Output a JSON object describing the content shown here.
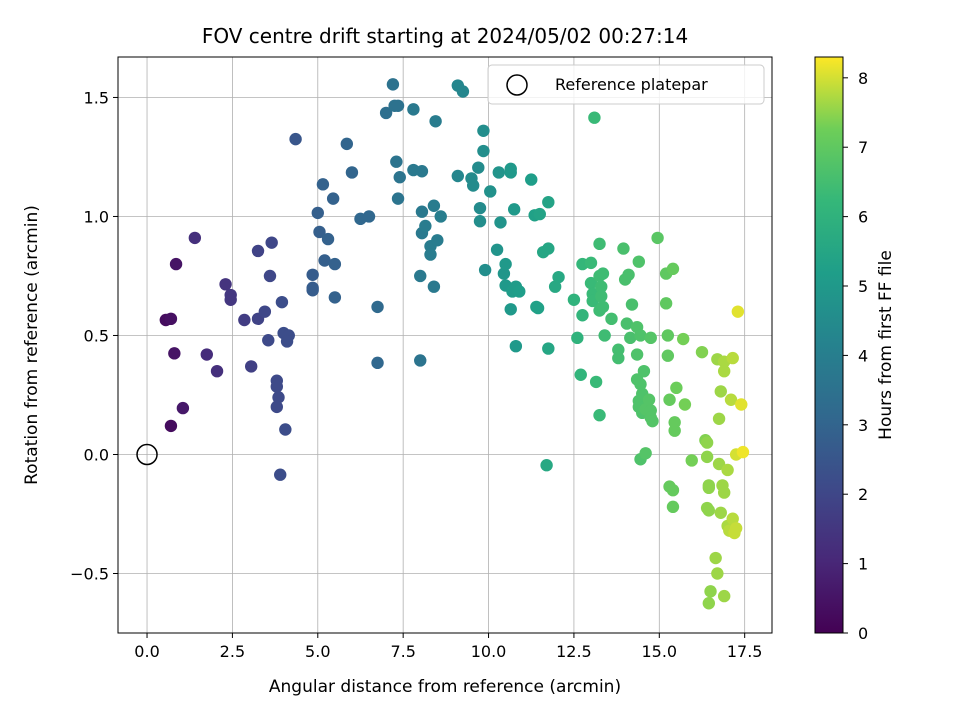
{
  "chart_data": {
    "type": "scatter",
    "title": "FOV centre drift starting at 2024/05/02 00:27:14",
    "xlabel": "Angular distance from reference (arcmin)",
    "ylabel": "Rotation from reference (arcmin)",
    "xlim": [
      -0.85,
      18.3
    ],
    "ylim": [
      -0.75,
      1.67
    ],
    "xticks": [
      0.0,
      2.5,
      5.0,
      7.5,
      10.0,
      12.5,
      15.0,
      17.5
    ],
    "xtick_labels": [
      "0.0",
      "2.5",
      "5.0",
      "7.5",
      "10.0",
      "12.5",
      "15.0",
      "17.5"
    ],
    "yticks": [
      -0.5,
      0.0,
      0.5,
      1.0,
      1.5
    ],
    "ytick_labels": [
      "−0.5",
      "0.0",
      "0.5",
      "1.0",
      "1.5"
    ],
    "grid": true,
    "legend": {
      "placement": "top-right",
      "entries": [
        "Reference platepar"
      ]
    },
    "reference_point": {
      "x": 0.0,
      "y": 0.0,
      "label": "Reference platepar",
      "marker": "open-circle"
    },
    "colorbar": {
      "label": "Hours from first FF file",
      "range": [
        0,
        8.3
      ],
      "ticks": [
        0,
        1,
        2,
        3,
        4,
        5,
        6,
        7,
        8
      ],
      "tick_labels": [
        "0",
        "1",
        "2",
        "3",
        "4",
        "5",
        "6",
        "7",
        "8"
      ],
      "colormap": "viridis"
    },
    "series": [
      {
        "points": [
          [
            0.55,
            0.565,
            0.3
          ],
          [
            0.7,
            0.57,
            0.4
          ],
          [
            0.85,
            0.8,
            0.5
          ],
          [
            0.8,
            0.425,
            0.5
          ],
          [
            0.7,
            0.12,
            0.3
          ],
          [
            1.05,
            0.195,
            0.6
          ],
          [
            1.4,
            0.91,
            1.3
          ],
          [
            1.75,
            0.42,
            1.2
          ],
          [
            2.05,
            0.35,
            1.3
          ],
          [
            2.3,
            0.715,
            1.4
          ],
          [
            2.45,
            0.67,
            1.5
          ],
          [
            2.45,
            0.65,
            1.5
          ],
          [
            2.85,
            0.565,
            1.7
          ],
          [
            3.05,
            0.37,
            1.8
          ],
          [
            3.25,
            0.57,
            1.9
          ],
          [
            3.45,
            0.6,
            2.0
          ],
          [
            3.25,
            0.855,
            1.9
          ],
          [
            3.65,
            0.89,
            2.0
          ],
          [
            3.6,
            0.75,
            2.0
          ],
          [
            3.55,
            0.48,
            2.1
          ],
          [
            3.8,
            0.31,
            2.1
          ],
          [
            3.8,
            0.285,
            2.1
          ],
          [
            3.85,
            0.24,
            2.1
          ],
          [
            3.8,
            0.2,
            2.1
          ],
          [
            3.9,
            -0.085,
            2.2
          ],
          [
            3.95,
            0.64,
            2.2
          ],
          [
            4.0,
            0.51,
            2.2
          ],
          [
            4.15,
            0.5,
            2.2
          ],
          [
            4.1,
            0.475,
            2.2
          ],
          [
            4.05,
            0.105,
            2.2
          ],
          [
            4.35,
            1.325,
            2.5
          ],
          [
            4.85,
            0.755,
            2.7
          ],
          [
            4.85,
            0.7,
            2.7
          ],
          [
            4.85,
            0.69,
            2.7
          ],
          [
            5.0,
            1.015,
            2.8
          ],
          [
            5.05,
            0.935,
            2.8
          ],
          [
            5.15,
            1.135,
            2.9
          ],
          [
            5.2,
            0.815,
            2.8
          ],
          [
            5.3,
            0.905,
            2.9
          ],
          [
            5.45,
            1.075,
            2.9
          ],
          [
            5.5,
            0.8,
            2.9
          ],
          [
            5.5,
            0.66,
            2.9
          ],
          [
            5.85,
            1.305,
            3.0
          ],
          [
            6.0,
            1.185,
            3.0
          ],
          [
            6.25,
            0.99,
            3.1
          ],
          [
            6.5,
            1.0,
            3.1
          ],
          [
            6.75,
            0.385,
            3.1
          ],
          [
            6.75,
            0.62,
            3.2
          ],
          [
            7.0,
            1.435,
            3.4
          ],
          [
            7.2,
            1.555,
            3.5
          ],
          [
            7.25,
            1.465,
            3.5
          ],
          [
            7.35,
            1.465,
            3.5
          ],
          [
            7.3,
            1.23,
            3.6
          ],
          [
            7.35,
            1.075,
            3.6
          ],
          [
            7.4,
            1.165,
            3.6
          ],
          [
            7.8,
            1.45,
            3.8
          ],
          [
            7.8,
            1.195,
            3.8
          ],
          [
            8.05,
            1.19,
            3.8
          ],
          [
            8.0,
            0.395,
            3.6
          ],
          [
            8.0,
            0.75,
            3.8
          ],
          [
            8.05,
            1.02,
            3.8
          ],
          [
            8.05,
            0.93,
            3.8
          ],
          [
            8.15,
            0.96,
            3.9
          ],
          [
            8.3,
            0.875,
            3.9
          ],
          [
            8.3,
            0.84,
            3.9
          ],
          [
            8.4,
            0.705,
            3.8
          ],
          [
            8.4,
            1.045,
            3.9
          ],
          [
            8.45,
            1.4,
            3.9
          ],
          [
            8.5,
            0.9,
            3.9
          ],
          [
            8.6,
            1.0,
            4.0
          ],
          [
            9.1,
            1.55,
            4.3
          ],
          [
            9.25,
            1.525,
            4.3
          ],
          [
            9.1,
            1.17,
            4.3
          ],
          [
            9.5,
            1.16,
            4.5
          ],
          [
            9.55,
            1.13,
            4.5
          ],
          [
            9.7,
            1.205,
            4.5
          ],
          [
            9.75,
            1.035,
            4.5
          ],
          [
            9.75,
            0.98,
            4.6
          ],
          [
            9.85,
            1.36,
            4.6
          ],
          [
            9.85,
            1.275,
            4.6
          ],
          [
            9.9,
            0.775,
            4.6
          ],
          [
            10.05,
            1.105,
            4.7
          ],
          [
            10.25,
            0.86,
            4.8
          ],
          [
            10.3,
            1.185,
            4.8
          ],
          [
            10.35,
            0.975,
            4.8
          ],
          [
            10.45,
            0.76,
            4.9
          ],
          [
            10.5,
            0.8,
            5.0
          ],
          [
            10.5,
            0.71,
            5.0
          ],
          [
            10.65,
            1.2,
            5.0
          ],
          [
            10.65,
            1.185,
            5.0
          ],
          [
            10.75,
            1.03,
            5.0
          ],
          [
            10.7,
            0.685,
            5.1
          ],
          [
            10.65,
            0.61,
            5.0
          ],
          [
            10.8,
            0.705,
            5.1
          ],
          [
            10.9,
            0.685,
            5.2
          ],
          [
            10.8,
            0.455,
            5.0
          ],
          [
            11.25,
            1.155,
            5.2
          ],
          [
            11.35,
            1.005,
            5.3
          ],
          [
            11.4,
            0.62,
            5.3
          ],
          [
            11.45,
            0.615,
            5.3
          ],
          [
            11.5,
            1.01,
            5.4
          ],
          [
            11.6,
            0.85,
            5.5
          ],
          [
            11.75,
            0.865,
            5.5
          ],
          [
            11.75,
            1.06,
            5.4
          ],
          [
            11.7,
            -0.045,
            5.6
          ],
          [
            11.75,
            0.445,
            5.5
          ],
          [
            11.95,
            0.705,
            5.6
          ],
          [
            12.05,
            0.745,
            5.6
          ],
          [
            12.5,
            0.65,
            6.0
          ],
          [
            12.6,
            0.49,
            6.0
          ],
          [
            12.75,
            0.585,
            6.1
          ],
          [
            12.7,
            0.335,
            6.1
          ],
          [
            12.75,
            0.8,
            6.2
          ],
          [
            13.0,
            0.805,
            6.3
          ],
          [
            13.0,
            0.72,
            6.3
          ],
          [
            13.05,
            0.675,
            6.3
          ],
          [
            13.05,
            0.645,
            6.3
          ],
          [
            13.1,
            1.415,
            6.3
          ],
          [
            13.15,
            0.305,
            6.3
          ],
          [
            13.25,
            0.165,
            6.3
          ],
          [
            13.25,
            0.885,
            6.4
          ],
          [
            13.25,
            0.75,
            6.4
          ],
          [
            13.25,
            0.605,
            6.4
          ],
          [
            13.3,
            0.705,
            6.4
          ],
          [
            13.3,
            0.665,
            6.4
          ],
          [
            13.35,
            0.76,
            6.4
          ],
          [
            13.35,
            0.62,
            6.4
          ],
          [
            13.4,
            0.5,
            6.4
          ],
          [
            13.6,
            0.57,
            6.5
          ],
          [
            13.8,
            0.44,
            6.5
          ],
          [
            13.8,
            0.405,
            6.5
          ],
          [
            13.95,
            0.865,
            6.6
          ],
          [
            14.0,
            0.735,
            6.6
          ],
          [
            14.1,
            0.755,
            6.6
          ],
          [
            14.05,
            0.55,
            6.6
          ],
          [
            14.15,
            0.49,
            6.6
          ],
          [
            14.2,
            0.63,
            6.6
          ],
          [
            14.35,
            0.535,
            6.7
          ],
          [
            14.35,
            0.42,
            6.7
          ],
          [
            14.35,
            0.315,
            6.7
          ],
          [
            14.4,
            0.81,
            6.7
          ],
          [
            14.45,
            0.5,
            6.7
          ],
          [
            14.4,
            0.225,
            6.7
          ],
          [
            14.4,
            0.2,
            6.7
          ],
          [
            14.45,
            0.295,
            6.7
          ],
          [
            14.5,
            0.255,
            6.7
          ],
          [
            14.5,
            0.175,
            6.7
          ],
          [
            14.55,
            0.35,
            6.7
          ],
          [
            14.45,
            -0.02,
            6.7
          ],
          [
            14.6,
            0.005,
            6.8
          ],
          [
            14.6,
            0.19,
            6.8
          ],
          [
            14.7,
            0.23,
            6.8
          ],
          [
            14.75,
            0.185,
            6.8
          ],
          [
            14.75,
            0.155,
            6.8
          ],
          [
            14.8,
            0.14,
            6.8
          ],
          [
            14.75,
            0.49,
            6.8
          ],
          [
            14.95,
            0.91,
            6.9
          ],
          [
            15.2,
            0.76,
            7.0
          ],
          [
            15.2,
            0.635,
            7.0
          ],
          [
            15.25,
            0.5,
            7.0
          ],
          [
            15.25,
            0.415,
            7.0
          ],
          [
            15.3,
            0.23,
            7.1
          ],
          [
            15.3,
            -0.135,
            7.1
          ],
          [
            15.4,
            0.78,
            7.1
          ],
          [
            15.4,
            -0.15,
            7.1
          ],
          [
            15.4,
            -0.22,
            7.1
          ],
          [
            15.45,
            0.1,
            7.1
          ],
          [
            15.45,
            0.135,
            7.1
          ],
          [
            15.5,
            0.28,
            7.2
          ],
          [
            15.7,
            0.485,
            7.3
          ],
          [
            15.75,
            0.21,
            7.3
          ],
          [
            15.95,
            -0.025,
            7.3
          ],
          [
            16.25,
            0.43,
            7.4
          ],
          [
            16.35,
            0.06,
            7.4
          ],
          [
            16.4,
            0.05,
            7.5
          ],
          [
            16.4,
            -0.01,
            7.5
          ],
          [
            16.45,
            -0.14,
            7.5
          ],
          [
            16.4,
            -0.225,
            7.5
          ],
          [
            16.45,
            -0.13,
            7.5
          ],
          [
            16.45,
            -0.235,
            7.5
          ],
          [
            16.5,
            -0.575,
            7.5
          ],
          [
            16.45,
            -0.625,
            7.5
          ],
          [
            16.7,
            0.4,
            7.6
          ],
          [
            16.65,
            -0.435,
            7.6
          ],
          [
            16.7,
            -0.5,
            7.6
          ],
          [
            16.75,
            -0.04,
            7.6
          ],
          [
            16.75,
            0.15,
            7.6
          ],
          [
            16.8,
            0.265,
            7.6
          ],
          [
            16.8,
            -0.245,
            7.6
          ],
          [
            16.85,
            -0.13,
            7.6
          ],
          [
            16.9,
            -0.16,
            7.6
          ],
          [
            16.9,
            0.39,
            7.7
          ],
          [
            16.9,
            0.35,
            7.7
          ],
          [
            16.9,
            -0.595,
            7.6
          ],
          [
            17.0,
            -0.065,
            7.7
          ],
          [
            17.0,
            -0.3,
            7.7
          ],
          [
            17.05,
            -0.32,
            7.8
          ],
          [
            17.1,
            0.23,
            7.8
          ],
          [
            17.15,
            0.405,
            7.8
          ],
          [
            17.15,
            -0.27,
            7.8
          ],
          [
            17.2,
            -0.33,
            7.9
          ],
          [
            17.25,
            0.0,
            8.0
          ],
          [
            17.25,
            -0.31,
            7.9
          ],
          [
            17.3,
            0.6,
            8.1
          ],
          [
            17.4,
            0.21,
            8.1
          ],
          [
            17.45,
            0.01,
            8.2
          ]
        ]
      }
    ]
  }
}
